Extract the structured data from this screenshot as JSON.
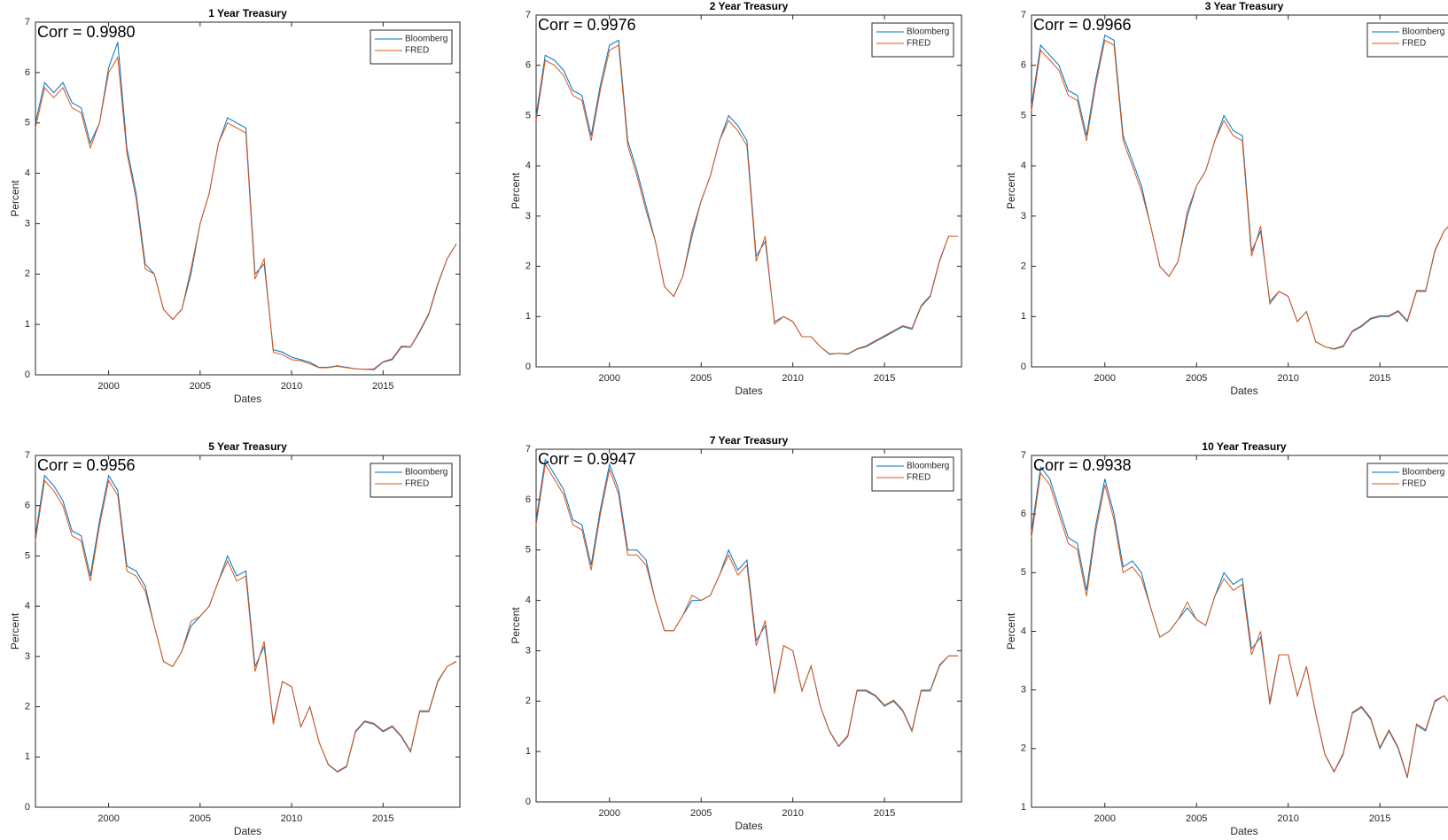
{
  "chart_data": [
    {
      "type": "line",
      "title": "1 Year Treasury",
      "annotation": "Corr = 0.9980",
      "x_label": "Dates",
      "y_label": "Percent",
      "xlim": [
        1996,
        2019.2
      ],
      "xticks": [
        2000,
        2005,
        2010,
        2015
      ],
      "ylim": [
        0,
        7
      ],
      "yticks": [
        0,
        1,
        2,
        3,
        4,
        5,
        6,
        7
      ],
      "legend": "upper right",
      "x": [
        1996,
        1996.5,
        1997,
        1997.5,
        1998,
        1998.5,
        1999,
        1999.5,
        2000,
        2000.5,
        2001,
        2001.5,
        2002,
        2002.5,
        2003,
        2003.5,
        2004,
        2004.5,
        2005,
        2005.5,
        2006,
        2006.5,
        2007,
        2007.5,
        2008,
        2008.5,
        2009,
        2009.5,
        2010,
        2010.5,
        2011,
        2011.5,
        2012,
        2012.5,
        2013,
        2013.5,
        2014,
        2014.5,
        2015,
        2015.5,
        2016,
        2016.5,
        2017,
        2017.5,
        2018,
        2018.5,
        2019
      ],
      "series": [
        {
          "name": "Bloomberg",
          "color": "#0072BD",
          "values": [
            5.0,
            5.8,
            5.6,
            5.8,
            5.4,
            5.3,
            4.6,
            5.0,
            6.1,
            6.6,
            4.5,
            3.6,
            2.2,
            2.0,
            1.3,
            1.1,
            1.3,
            2.0,
            3.0,
            3.6,
            4.6,
            5.1,
            5.0,
            4.9,
            2.0,
            2.2,
            0.5,
            0.45,
            0.35,
            0.3,
            0.25,
            0.15,
            0.15,
            0.18,
            0.15,
            0.12,
            0.11,
            0.1,
            0.25,
            0.3,
            0.55,
            0.55,
            0.85,
            1.2,
            1.8,
            2.3,
            2.6
          ]
        },
        {
          "name": "FRED",
          "color": "#D95319",
          "values": [
            4.9,
            5.7,
            5.5,
            5.7,
            5.3,
            5.2,
            4.5,
            5.0,
            6.0,
            6.3,
            4.4,
            3.5,
            2.1,
            2.0,
            1.3,
            1.1,
            1.3,
            2.1,
            3.0,
            3.6,
            4.6,
            5.0,
            4.9,
            4.8,
            1.9,
            2.3,
            0.45,
            0.4,
            0.3,
            0.28,
            0.22,
            0.14,
            0.14,
            0.17,
            0.14,
            0.12,
            0.11,
            0.12,
            0.26,
            0.32,
            0.57,
            0.56,
            0.87,
            1.22,
            1.82,
            2.3,
            2.6
          ]
        }
      ]
    },
    {
      "type": "line",
      "title": "2 Year Treasury",
      "annotation": "Corr = 0.9976",
      "x_label": "Dates",
      "y_label": "Percent",
      "xlim": [
        1996,
        2019.2
      ],
      "xticks": [
        2000,
        2005,
        2010,
        2015
      ],
      "ylim": [
        0,
        7
      ],
      "yticks": [
        0,
        1,
        2,
        3,
        4,
        5,
        6,
        7
      ],
      "legend": "upper right",
      "x": [
        1996,
        1996.5,
        1997,
        1997.5,
        1998,
        1998.5,
        1999,
        1999.5,
        2000,
        2000.5,
        2001,
        2001.5,
        2002,
        2002.5,
        2003,
        2003.5,
        2004,
        2004.5,
        2005,
        2005.5,
        2006,
        2006.5,
        2007,
        2007.5,
        2008,
        2008.5,
        2009,
        2009.5,
        2010,
        2010.5,
        2011,
        2011.5,
        2012,
        2012.5,
        2013,
        2013.5,
        2014,
        2014.5,
        2015,
        2015.5,
        2016,
        2016.5,
        2017,
        2017.5,
        2018,
        2018.5,
        2019
      ],
      "series": [
        {
          "name": "Bloomberg",
          "color": "#0072BD",
          "values": [
            5.0,
            6.2,
            6.1,
            5.9,
            5.5,
            5.4,
            4.6,
            5.6,
            6.4,
            6.5,
            4.5,
            3.9,
            3.2,
            2.5,
            1.6,
            1.4,
            1.8,
            2.6,
            3.3,
            3.8,
            4.5,
            5.0,
            4.8,
            4.5,
            2.2,
            2.5,
            0.9,
            1.0,
            0.9,
            0.6,
            0.6,
            0.4,
            0.25,
            0.27,
            0.25,
            0.35,
            0.4,
            0.5,
            0.6,
            0.7,
            0.8,
            0.75,
            1.2,
            1.4,
            2.1,
            2.6,
            2.6
          ]
        },
        {
          "name": "FRED",
          "color": "#D95319",
          "values": [
            4.9,
            6.1,
            6.0,
            5.8,
            5.4,
            5.3,
            4.5,
            5.5,
            6.3,
            6.4,
            4.4,
            3.8,
            3.1,
            2.5,
            1.6,
            1.4,
            1.8,
            2.7,
            3.3,
            3.8,
            4.5,
            4.9,
            4.7,
            4.4,
            2.1,
            2.6,
            0.85,
            1.0,
            0.9,
            0.6,
            0.6,
            0.4,
            0.26,
            0.27,
            0.26,
            0.36,
            0.42,
            0.52,
            0.62,
            0.72,
            0.82,
            0.77,
            1.22,
            1.42,
            2.12,
            2.6,
            2.6
          ]
        }
      ]
    },
    {
      "type": "line",
      "title": "3 Year Treasury",
      "annotation": "Corr = 0.9966",
      "x_label": "Dates",
      "y_label": "Percent",
      "xlim": [
        1996,
        2019.2
      ],
      "xticks": [
        2000,
        2005,
        2010,
        2015
      ],
      "ylim": [
        0,
        7
      ],
      "yticks": [
        0,
        1,
        2,
        3,
        4,
        5,
        6,
        7
      ],
      "legend": "upper right",
      "x": [
        1996,
        1996.5,
        1997,
        1997.5,
        1998,
        1998.5,
        1999,
        1999.5,
        2000,
        2000.5,
        2001,
        2001.5,
        2002,
        2002.5,
        2003,
        2003.5,
        2004,
        2004.5,
        2005,
        2005.5,
        2006,
        2006.5,
        2007,
        2007.5,
        2008,
        2008.5,
        2009,
        2009.5,
        2010,
        2010.5,
        2011,
        2011.5,
        2012,
        2012.5,
        2013,
        2013.5,
        2014,
        2014.5,
        2015,
        2015.5,
        2016,
        2016.5,
        2017,
        2017.5,
        2018,
        2018.5,
        2019
      ],
      "series": [
        {
          "name": "Bloomberg",
          "color": "#0072BD",
          "values": [
            5.2,
            6.4,
            6.2,
            6.0,
            5.5,
            5.4,
            4.6,
            5.7,
            6.6,
            6.5,
            4.6,
            4.1,
            3.6,
            2.8,
            2.0,
            1.8,
            2.1,
            3.0,
            3.6,
            3.9,
            4.5,
            5.0,
            4.7,
            4.6,
            2.3,
            2.7,
            1.3,
            1.5,
            1.4,
            0.9,
            1.1,
            0.5,
            0.4,
            0.35,
            0.4,
            0.7,
            0.8,
            0.95,
            1.0,
            1.0,
            1.1,
            0.9,
            1.5,
            1.5,
            2.3,
            2.7,
            2.9
          ]
        },
        {
          "name": "FRED",
          "color": "#D95319",
          "values": [
            5.1,
            6.3,
            6.1,
            5.9,
            5.4,
            5.3,
            4.5,
            5.6,
            6.5,
            6.4,
            4.5,
            4.0,
            3.5,
            2.8,
            2.0,
            1.8,
            2.1,
            3.1,
            3.6,
            3.9,
            4.5,
            4.9,
            4.6,
            4.5,
            2.2,
            2.8,
            1.25,
            1.5,
            1.4,
            0.9,
            1.1,
            0.5,
            0.4,
            0.36,
            0.42,
            0.72,
            0.82,
            0.97,
            1.02,
            1.02,
            1.12,
            0.92,
            1.52,
            1.52,
            2.32,
            2.7,
            2.9
          ]
        }
      ]
    },
    {
      "type": "line",
      "title": "5 Year Treasury",
      "annotation": "Corr = 0.9956",
      "x_label": "Dates",
      "y_label": "Percent",
      "xlim": [
        1996,
        2019.2
      ],
      "xticks": [
        2000,
        2005,
        2010,
        2015
      ],
      "ylim": [
        0,
        7
      ],
      "yticks": [
        0,
        1,
        2,
        3,
        4,
        5,
        6,
        7
      ],
      "legend": "upper right",
      "x": [
        1996,
        1996.5,
        1997,
        1997.5,
        1998,
        1998.5,
        1999,
        1999.5,
        2000,
        2000.5,
        2001,
        2001.5,
        2002,
        2002.5,
        2003,
        2003.5,
        2004,
        2004.5,
        2005,
        2005.5,
        2006,
        2006.5,
        2007,
        2007.5,
        2008,
        2008.5,
        2009,
        2009.5,
        2010,
        2010.5,
        2011,
        2011.5,
        2012,
        2012.5,
        2013,
        2013.5,
        2014,
        2014.5,
        2015,
        2015.5,
        2016,
        2016.5,
        2017,
        2017.5,
        2018,
        2018.5,
        2019
      ],
      "series": [
        {
          "name": "Bloomberg",
          "color": "#0072BD",
          "values": [
            5.4,
            6.6,
            6.4,
            6.1,
            5.5,
            5.4,
            4.6,
            5.7,
            6.6,
            6.3,
            4.8,
            4.7,
            4.4,
            3.6,
            2.9,
            2.8,
            3.1,
            3.6,
            3.8,
            4.0,
            4.5,
            5.0,
            4.6,
            4.7,
            2.8,
            3.2,
            1.7,
            2.5,
            2.4,
            1.6,
            2.0,
            1.3,
            0.85,
            0.7,
            0.8,
            1.5,
            1.7,
            1.65,
            1.5,
            1.6,
            1.4,
            1.1,
            1.9,
            1.9,
            2.5,
            2.8,
            2.9
          ]
        },
        {
          "name": "FRED",
          "color": "#D95319",
          "values": [
            5.3,
            6.5,
            6.3,
            6.0,
            5.4,
            5.3,
            4.5,
            5.6,
            6.5,
            6.2,
            4.7,
            4.6,
            4.3,
            3.6,
            2.9,
            2.8,
            3.1,
            3.7,
            3.8,
            4.0,
            4.5,
            4.9,
            4.5,
            4.6,
            2.7,
            3.3,
            1.65,
            2.5,
            2.4,
            1.6,
            2.0,
            1.3,
            0.86,
            0.71,
            0.82,
            1.52,
            1.72,
            1.67,
            1.52,
            1.62,
            1.42,
            1.12,
            1.92,
            1.92,
            2.52,
            2.8,
            2.9
          ]
        }
      ]
    },
    {
      "type": "line",
      "title": "7 Year Treasury",
      "annotation": "Corr = 0.9947",
      "x_label": "Dates",
      "y_label": "Percent",
      "xlim": [
        1996,
        2019.2
      ],
      "xticks": [
        2000,
        2005,
        2010,
        2015
      ],
      "ylim": [
        0,
        7
      ],
      "yticks": [
        0,
        1,
        2,
        3,
        4,
        5,
        6,
        7
      ],
      "legend": "upper right",
      "x": [
        1996,
        1996.5,
        1997,
        1997.5,
        1998,
        1998.5,
        1999,
        1999.5,
        2000,
        2000.5,
        2001,
        2001.5,
        2002,
        2002.5,
        2003,
        2003.5,
        2004,
        2004.5,
        2005,
        2005.5,
        2006,
        2006.5,
        2007,
        2007.5,
        2008,
        2008.5,
        2009,
        2009.5,
        2010,
        2010.5,
        2011,
        2011.5,
        2012,
        2012.5,
        2013,
        2013.5,
        2014,
        2014.5,
        2015,
        2015.5,
        2016,
        2016.5,
        2017,
        2017.5,
        2018,
        2018.5,
        2019
      ],
      "series": [
        {
          "name": "Bloomberg",
          "color": "#0072BD",
          "values": [
            5.6,
            6.8,
            6.5,
            6.2,
            5.6,
            5.5,
            4.7,
            5.8,
            6.7,
            6.2,
            5.0,
            5.0,
            4.8,
            4.0,
            3.4,
            3.4,
            3.7,
            4.0,
            4.0,
            4.1,
            4.5,
            5.0,
            4.6,
            4.8,
            3.2,
            3.5,
            2.2,
            3.1,
            3.0,
            2.2,
            2.7,
            1.9,
            1.4,
            1.1,
            1.3,
            2.2,
            2.2,
            2.1,
            1.9,
            2.0,
            1.8,
            1.4,
            2.2,
            2.2,
            2.7,
            2.9,
            2.9
          ]
        },
        {
          "name": "FRED",
          "color": "#D95319",
          "values": [
            5.5,
            6.7,
            6.4,
            6.1,
            5.5,
            5.4,
            4.6,
            5.7,
            6.6,
            6.1,
            4.9,
            4.9,
            4.7,
            4.0,
            3.4,
            3.4,
            3.7,
            4.1,
            4.0,
            4.1,
            4.5,
            4.9,
            4.5,
            4.7,
            3.1,
            3.6,
            2.15,
            3.1,
            3.0,
            2.2,
            2.7,
            1.9,
            1.41,
            1.11,
            1.32,
            2.22,
            2.22,
            2.12,
            1.92,
            2.02,
            1.82,
            1.42,
            2.22,
            2.22,
            2.72,
            2.9,
            2.9
          ]
        }
      ]
    },
    {
      "type": "line",
      "title": "10 Year Treasury",
      "annotation": "Corr = 0.9938",
      "x_label": "Dates",
      "y_label": "Percent",
      "xlim": [
        1996,
        2019.2
      ],
      "xticks": [
        2000,
        2005,
        2010,
        2015
      ],
      "ylim": [
        1,
        7
      ],
      "yticks": [
        1,
        2,
        3,
        4,
        5,
        6,
        7
      ],
      "legend": "upper right",
      "x": [
        1996,
        1996.5,
        1997,
        1997.5,
        1998,
        1998.5,
        1999,
        1999.5,
        2000,
        2000.5,
        2001,
        2001.5,
        2002,
        2002.5,
        2003,
        2003.5,
        2004,
        2004.5,
        2005,
        2005.5,
        2006,
        2006.5,
        2007,
        2007.5,
        2008,
        2008.5,
        2009,
        2009.5,
        2010,
        2010.5,
        2011,
        2011.5,
        2012,
        2012.5,
        2013,
        2013.5,
        2014,
        2014.5,
        2015,
        2015.5,
        2016,
        2016.5,
        2017,
        2017.5,
        2018,
        2018.5,
        2019
      ],
      "series": [
        {
          "name": "Bloomberg",
          "color": "#0072BD",
          "values": [
            5.7,
            6.8,
            6.6,
            6.1,
            5.6,
            5.5,
            4.7,
            5.8,
            6.6,
            6.0,
            5.1,
            5.2,
            5.0,
            4.4,
            3.9,
            4.0,
            4.2,
            4.4,
            4.2,
            4.1,
            4.6,
            5.0,
            4.8,
            4.9,
            3.7,
            3.9,
            2.8,
            3.6,
            3.6,
            2.9,
            3.4,
            2.6,
            1.9,
            1.6,
            1.9,
            2.6,
            2.7,
            2.5,
            2.0,
            2.3,
            2.0,
            1.5,
            2.4,
            2.3,
            2.8,
            2.9,
            2.7
          ]
        },
        {
          "name": "FRED",
          "color": "#D95319",
          "values": [
            5.6,
            6.7,
            6.5,
            6.0,
            5.5,
            5.4,
            4.6,
            5.7,
            6.5,
            5.9,
            5.0,
            5.1,
            4.9,
            4.4,
            3.9,
            4.0,
            4.2,
            4.5,
            4.2,
            4.1,
            4.6,
            4.9,
            4.7,
            4.8,
            3.6,
            4.0,
            2.75,
            3.6,
            3.6,
            2.9,
            3.4,
            2.6,
            1.91,
            1.61,
            1.92,
            2.62,
            2.72,
            2.52,
            2.02,
            2.32,
            2.02,
            1.52,
            2.42,
            2.32,
            2.82,
            2.9,
            2.7
          ]
        }
      ]
    }
  ]
}
